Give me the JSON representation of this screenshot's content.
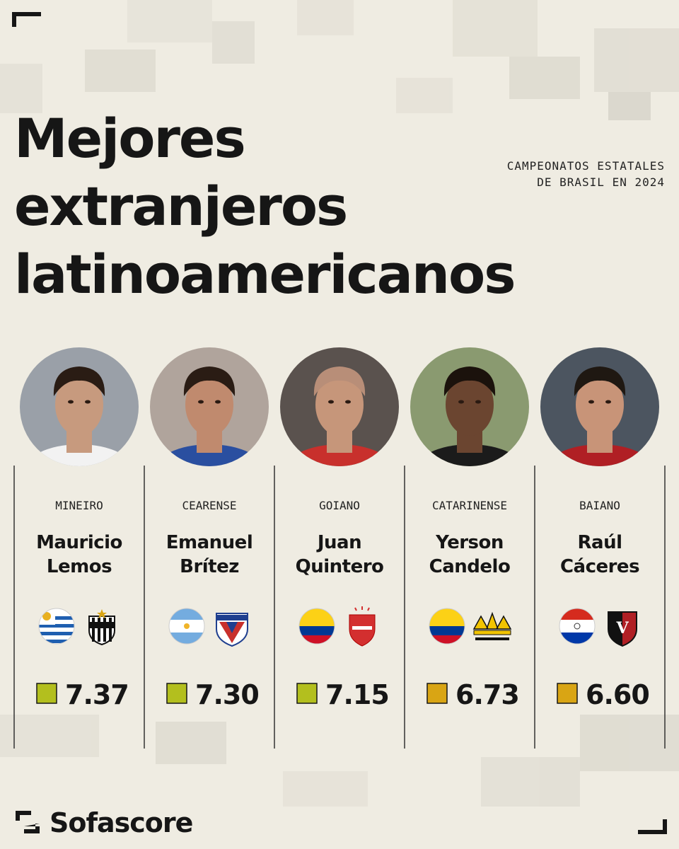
{
  "header": {
    "title_lines": [
      "Mejores",
      "extranjeros",
      "latinoamericanos"
    ],
    "subtitle_lines": [
      "CAMPEONATOS ESTATALES",
      "DE BRASIL EN 2024"
    ]
  },
  "players": [
    {
      "league": "MINEIRO",
      "first_name": "Mauricio",
      "last_name": "Lemos",
      "rating": "7.37",
      "rating_color": "#b3bf1e"
    },
    {
      "league": "CEARENSE",
      "first_name": "Emanuel",
      "last_name": "Brítez",
      "rating": "7.30",
      "rating_color": "#b3bf1e"
    },
    {
      "league": "GOIANO",
      "first_name": "Juan",
      "last_name": "Quintero",
      "rating": "7.15",
      "rating_color": "#b3bf1e"
    },
    {
      "league": "CATARINENSE",
      "first_name": "Yerson",
      "last_name": "Candelo",
      "rating": "6.73",
      "rating_color": "#d9a514"
    },
    {
      "league": "BAIANO",
      "first_name": "Raúl",
      "last_name": "Cáceres",
      "rating": "6.60",
      "rating_color": "#d9a514"
    }
  ],
  "footer": {
    "brand": "Sofascore"
  }
}
